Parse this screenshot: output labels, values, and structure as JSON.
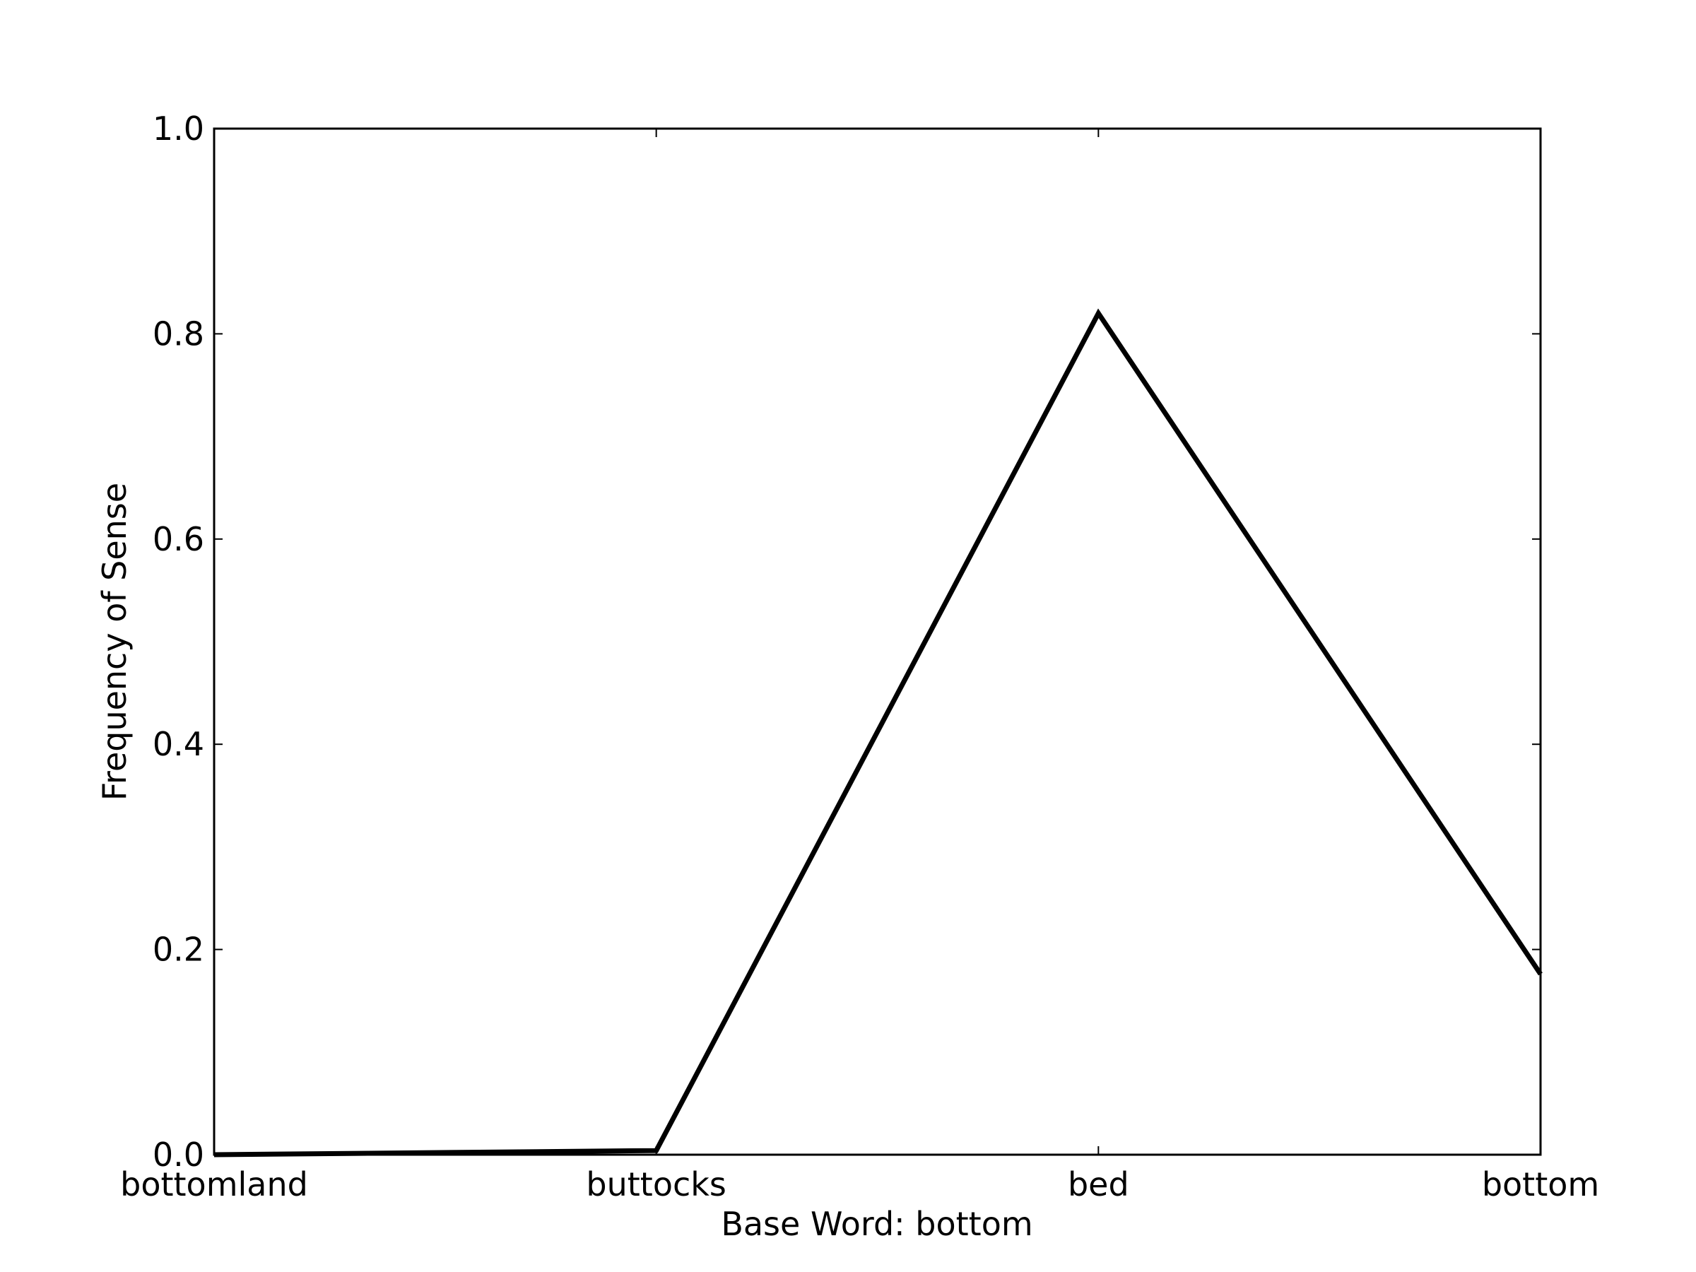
{
  "chart_data": {
    "type": "line",
    "title": "",
    "xlabel": "Base Word: bottom",
    "ylabel": "Frequency of Sense",
    "categories": [
      "bottomland",
      "buttocks",
      "bed",
      "bottom"
    ],
    "series": [
      {
        "values": [
          0.0,
          0.004,
          0.82,
          0.176
        ]
      }
    ],
    "ylim": [
      0.0,
      1.0
    ],
    "yticks": [
      0.0,
      0.2,
      0.4,
      0.6,
      0.8,
      1.0
    ],
    "ytick_labels": [
      "0.0",
      "0.2",
      "0.4",
      "0.6",
      "0.8",
      "1.0"
    ],
    "grid": false,
    "line_color": "#000000"
  }
}
